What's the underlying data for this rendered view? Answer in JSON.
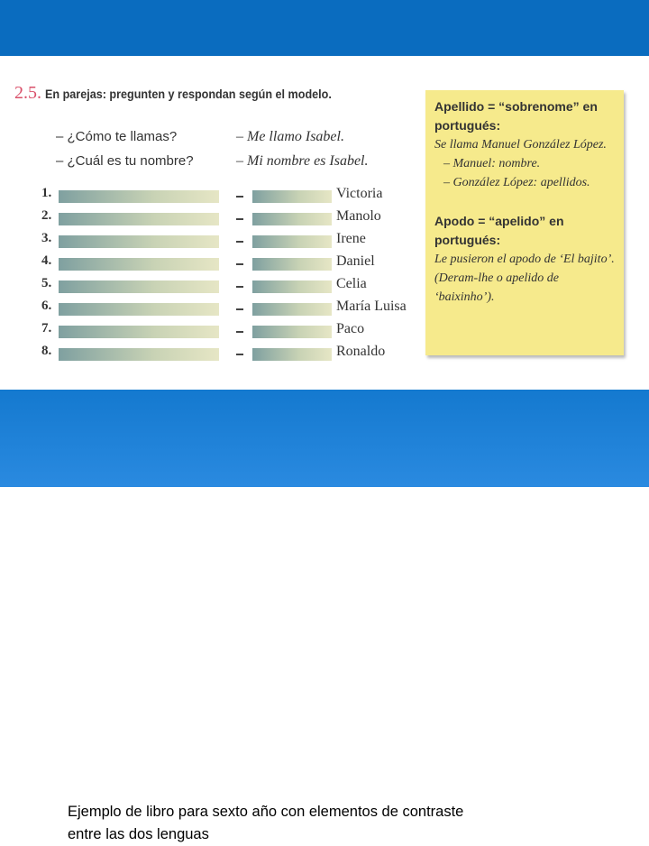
{
  "exercise": {
    "number": "2.5.",
    "instruction": "En parejas: pregunten y respondan según el modelo.",
    "model": [
      {
        "question": "– ¿Cómo te llamas?",
        "answer": "– Me llamo Isabel."
      },
      {
        "question": "– ¿Cuál es tu nombre?",
        "answer": "– Mi nombre es Isabel."
      }
    ],
    "items": [
      {
        "number": "1.",
        "name": "Victoria"
      },
      {
        "number": "2.",
        "name": "Manolo"
      },
      {
        "number": "3.",
        "name": "Irene"
      },
      {
        "number": "4.",
        "name": "Daniel"
      },
      {
        "number": "5.",
        "name": "Celia"
      },
      {
        "number": "6.",
        "name": "María Luisa"
      },
      {
        "number": "7.",
        "name": "Paco"
      },
      {
        "number": "8.",
        "name": "Ronaldo"
      }
    ]
  },
  "sidebar": {
    "blocks": [
      {
        "heading": "Apellido = “sobrenome” en portugués:",
        "example": "Se llama Manuel González López.",
        "details": [
          "– Manuel: nombre.",
          "– González López: apellidos."
        ]
      },
      {
        "heading": "Apodo = “apelido” en portugués:",
        "example": "Le pusieron el apodo de ‘El bajito’. (Deram-lhe o apelido de ‘baixinho’).",
        "details": []
      }
    ]
  },
  "caption": {
    "lines": [
      "Ejemplo de libro para sexto año con elementos de contraste",
      "entre las dos lenguas"
    ]
  }
}
